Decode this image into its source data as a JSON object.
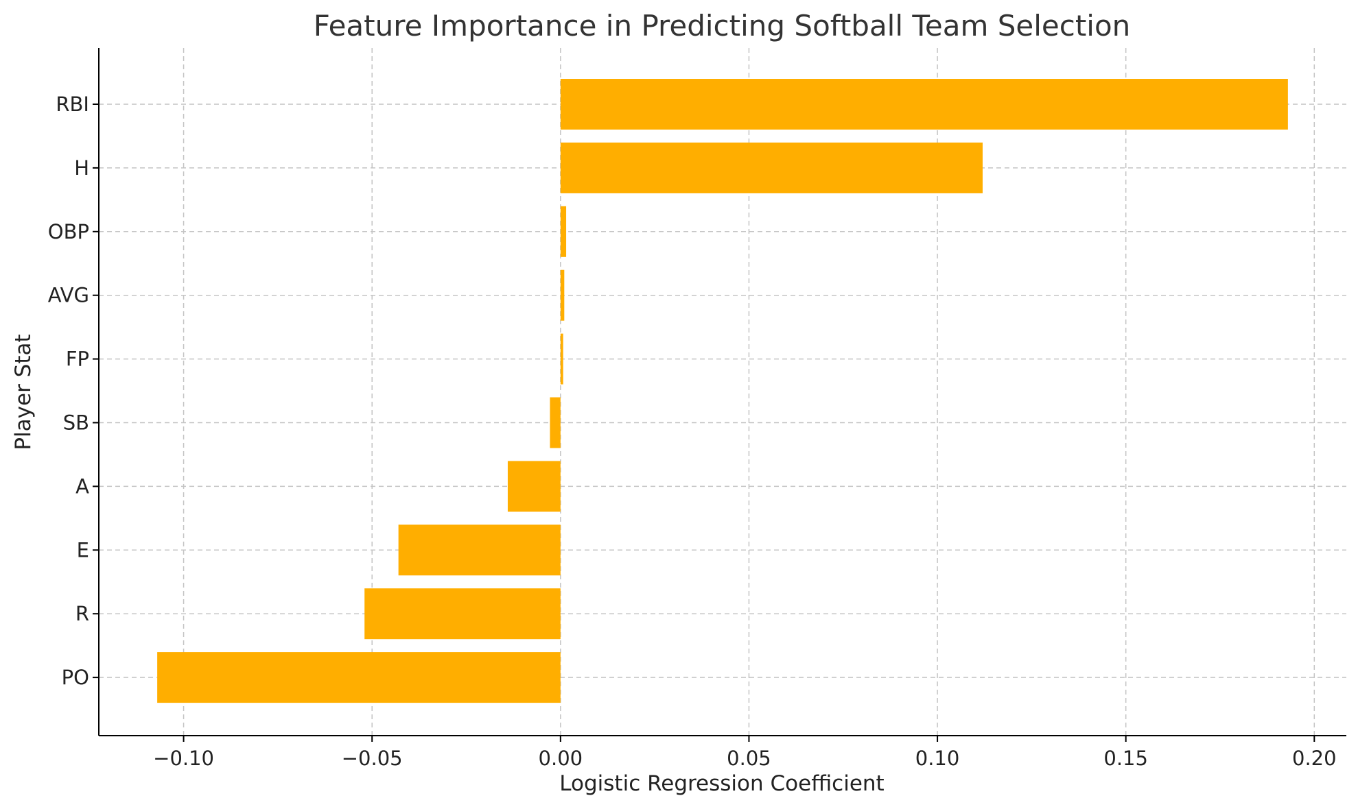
{
  "chart_data": {
    "type": "bar",
    "orientation": "horizontal",
    "title": "Feature Importance in Predicting Softball Team Selection",
    "xlabel": "Logistic Regression Coefficient",
    "ylabel": "Player Stat",
    "categories": [
      "RBI",
      "H",
      "OBP",
      "AVG",
      "FP",
      "SB",
      "A",
      "E",
      "R",
      "PO"
    ],
    "values": [
      0.193,
      0.112,
      0.0015,
      0.001,
      0.0007,
      -0.0028,
      -0.014,
      -0.043,
      -0.052,
      -0.107
    ],
    "xlim": [
      -0.1225,
      0.2085
    ],
    "xticks": [
      -0.1,
      -0.05,
      0.0,
      0.05,
      0.1,
      0.15,
      0.2
    ],
    "xtick_labels": [
      "−0.10",
      "−0.05",
      "0.00",
      "0.05",
      "0.10",
      "0.15",
      "0.20"
    ],
    "grid": true,
    "bar_color": "#FFAE00",
    "grid_color": "#c4c4c4"
  }
}
